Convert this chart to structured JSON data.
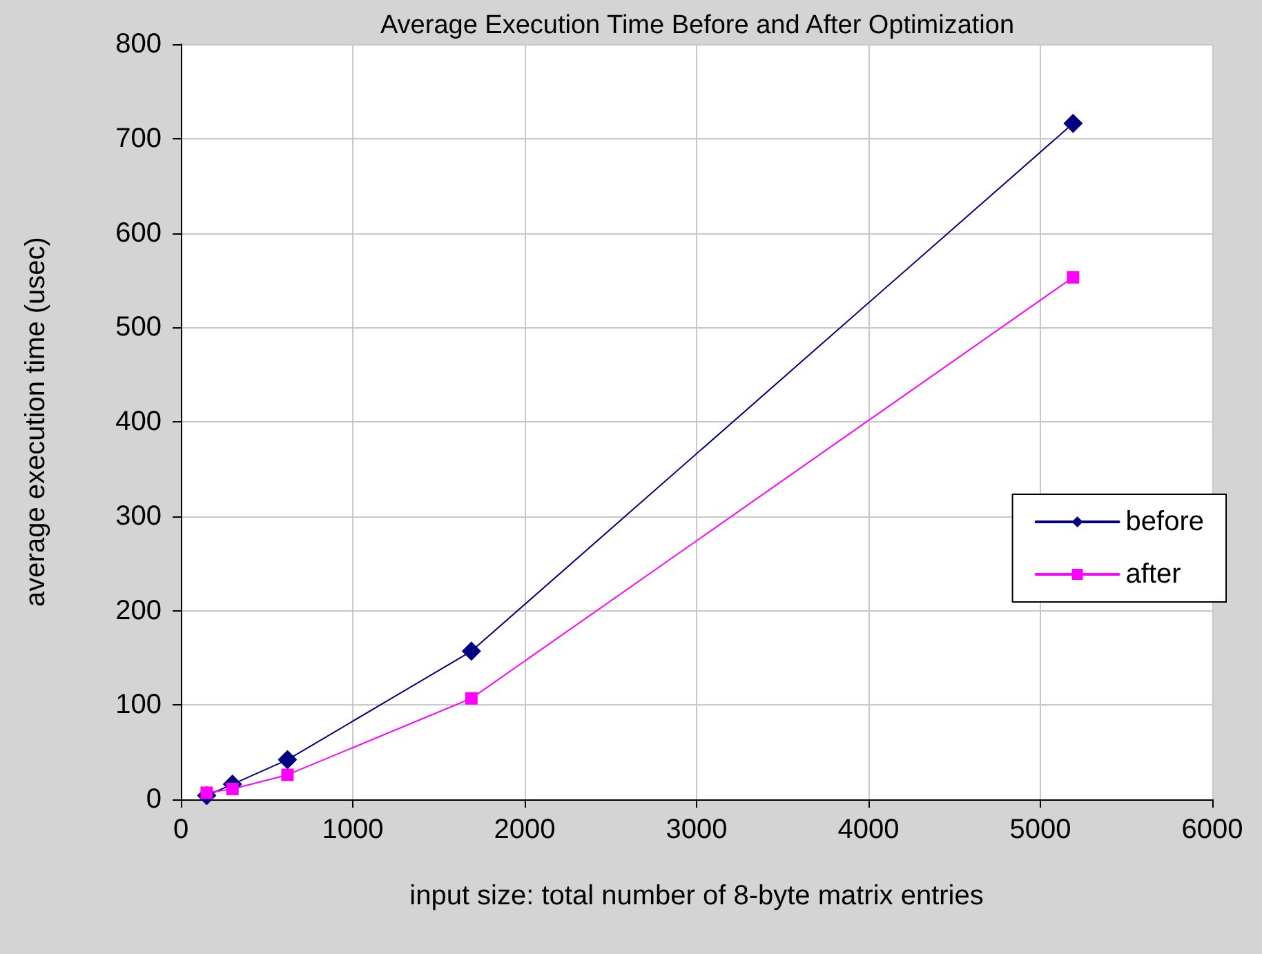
{
  "chart_data": {
    "type": "line",
    "title": "Average Execution Time Before and After Optimization",
    "xlabel": "input size: total number of 8-byte matrix entries",
    "ylabel": "average execution time (usec)",
    "x": [
      150,
      300,
      620,
      1690,
      5190
    ],
    "series": [
      {
        "name": "before",
        "color": "#000080",
        "values": [
          4,
          16,
          42,
          157,
          716
        ],
        "marker": "diamond"
      },
      {
        "name": "after",
        "color": "#ff00ff",
        "values": [
          7,
          11,
          26,
          107,
          553
        ],
        "marker": "square"
      }
    ],
    "xlim": [
      0,
      6000
    ],
    "xticks": [
      0,
      1000,
      2000,
      3000,
      4000,
      5000,
      6000
    ],
    "ylim": [
      0,
      800
    ],
    "yticks": [
      0,
      100,
      200,
      300,
      400,
      500,
      600,
      700,
      800
    ],
    "grid": true,
    "legend": "right"
  }
}
